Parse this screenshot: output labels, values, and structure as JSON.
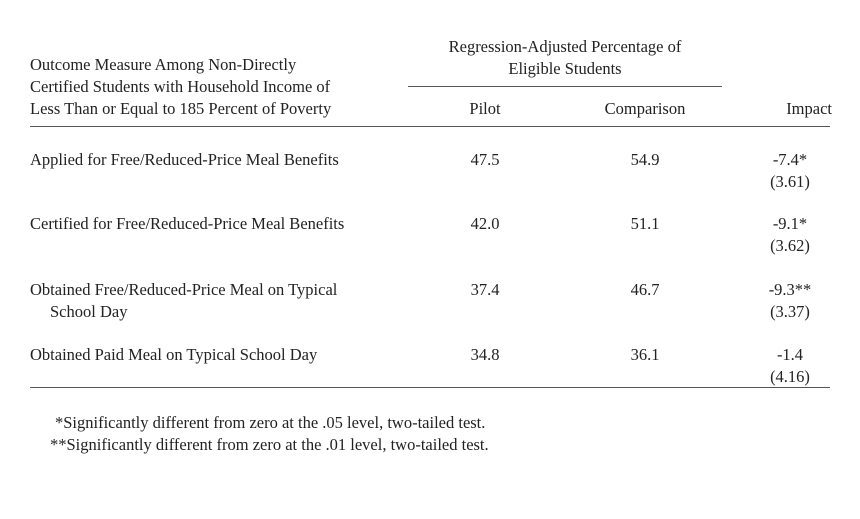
{
  "header": {
    "outcome_lines": [
      "Outcome Measure Among Non-Directly",
      "Certified Students with Household Income of",
      "Less Than or Equal to 185 Percent of Poverty"
    ],
    "group_lines": [
      "Regression-Adjusted Percentage of",
      "Eligible Students"
    ],
    "col_pilot": "Pilot",
    "col_comparison": "Comparison",
    "col_impact": "Impact"
  },
  "rows": [
    {
      "label_lines": [
        "Applied for Free/Reduced-Price Meal Benefits"
      ],
      "pilot": "47.5",
      "comparison": "54.9",
      "impact": "-7.4*",
      "se": "(3.61)"
    },
    {
      "label_lines": [
        "Certified for Free/Reduced-Price Meal Benefits"
      ],
      "pilot": "42.0",
      "comparison": "51.1",
      "impact": "-9.1*",
      "se": "(3.62)"
    },
    {
      "label_lines": [
        "Obtained Free/Reduced-Price Meal on Typical",
        "School Day"
      ],
      "pilot": "37.4",
      "comparison": "46.7",
      "impact": "-9.3**",
      "se": "(3.37)"
    },
    {
      "label_lines": [
        "Obtained Paid Meal on Typical School Day"
      ],
      "pilot": "34.8",
      "comparison": "36.1",
      "impact": "-1.4",
      "se": "(4.16)"
    }
  ],
  "footnotes": [
    "*Significantly different from zero at the .05 level, two-tailed test.",
    "**Significantly different from zero at the .01 level, two-tailed test."
  ]
}
